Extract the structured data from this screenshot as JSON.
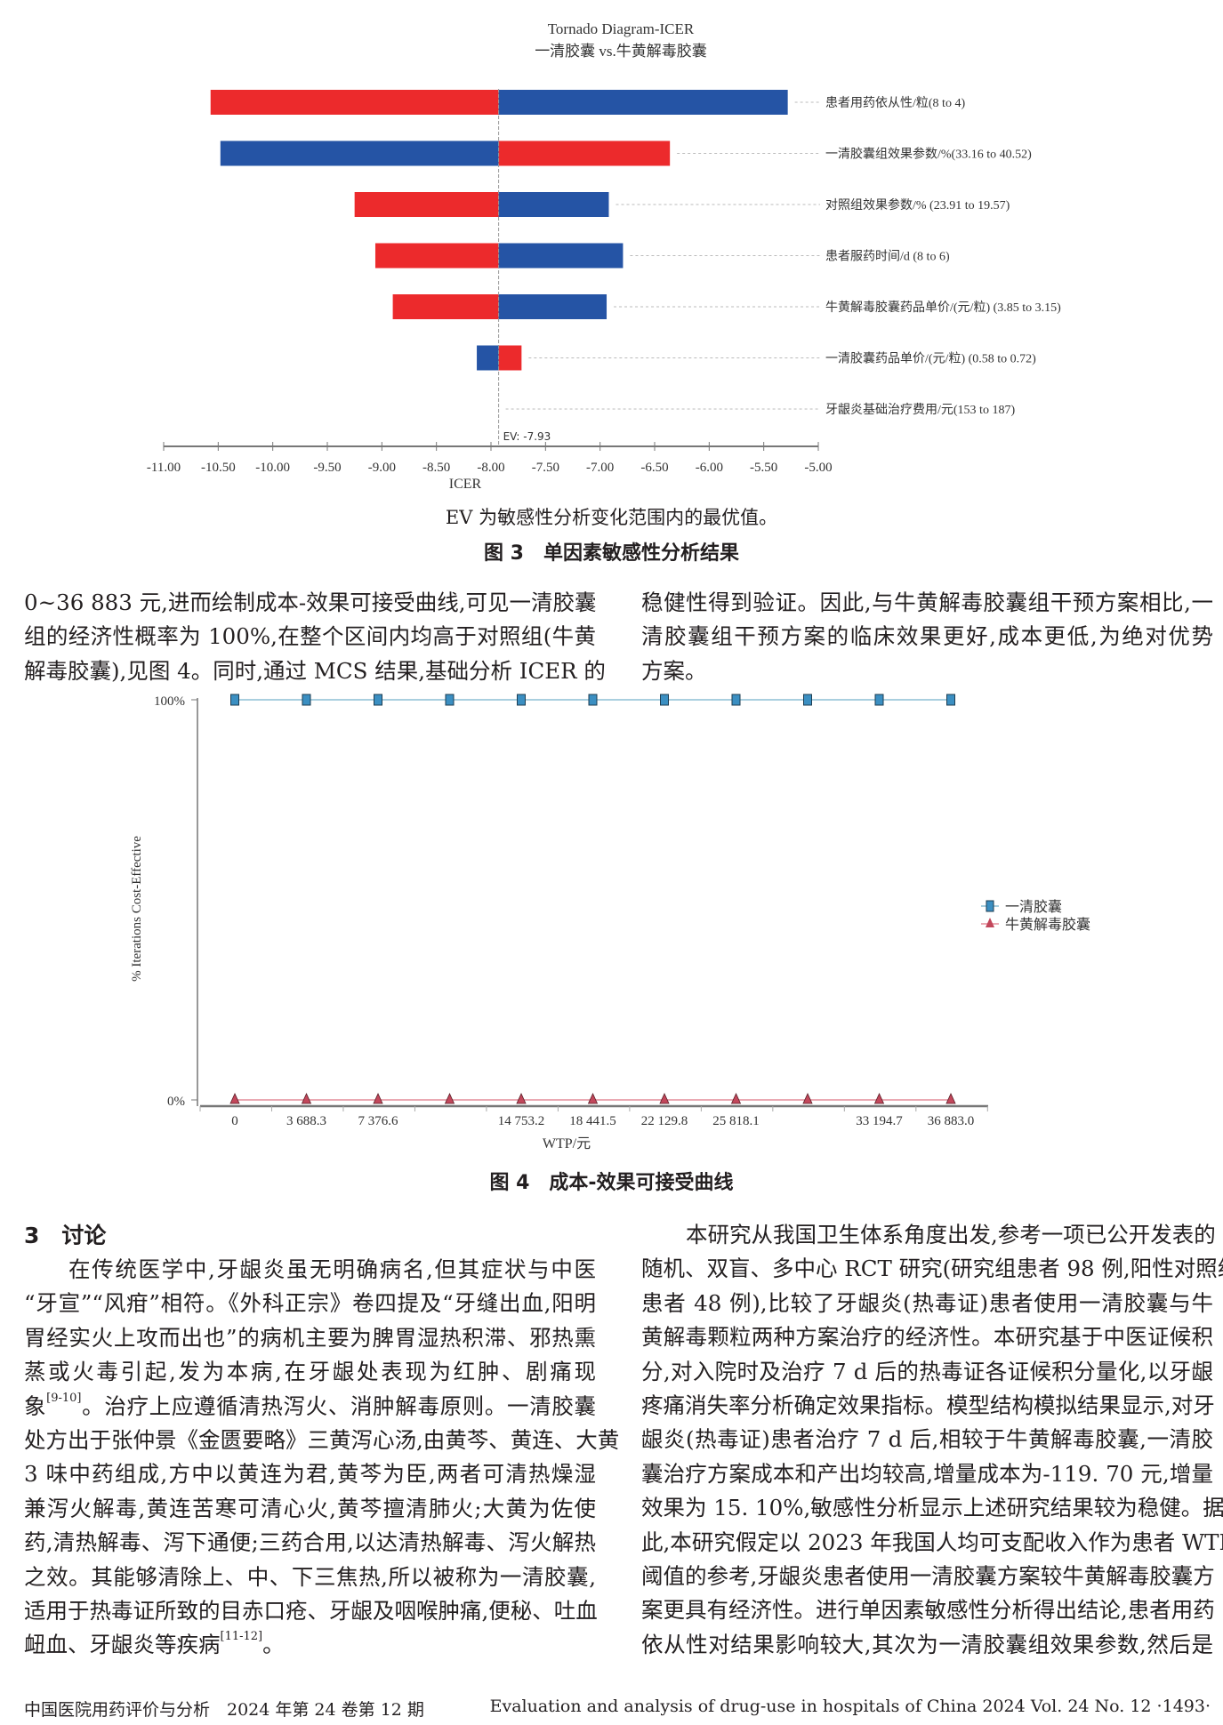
{
  "figure3": {
    "note": "EV 为敏感性分析变化范围内的最优值。",
    "caption": "图 3　单因素敏感性分析结果"
  },
  "figure4": {
    "caption": "图 4　成本-效果可接受曲线"
  },
  "intro": {
    "left_lines": [
      "0~36 883 元,进而绘制成本-效果可接受曲线,可见一清胶囊",
      "组的经济性概率为 100%,在整个区间内均高于对照组(牛黄",
      "解毒胶囊),见图 4。同时,通过 MCS 结果,基础分析 ICER 的"
    ],
    "right_lines": [
      "稳健性得到验证。因此,与牛黄解毒胶囊组干预方案相比,一",
      "清胶囊组干预方案的临床效果更好,成本更低,为绝对优势",
      "方案。"
    ]
  },
  "section3": {
    "heading": "3　讨论",
    "left_lines": [
      {
        "text": "在传统医学中,牙龈炎虽无明确病名,但其症状与中医"
      },
      {
        "text": "“牙宣”“风疳”相符。《外科正宗》卷四提及“牙缝出血,阳明"
      },
      {
        "text": "胃经实火上攻而出也”的病机主要为脾胃湿热积滞、邪热熏"
      },
      {
        "text": "蒸或火毒引起,发为本病,在牙龈处表现为红肿、剧痛现"
      },
      {
        "text": "象",
        "sup": "[9-10]",
        "after": "。治疗上应遵循清热泻火、消肿解毒原则。一清胶囊"
      },
      {
        "text": "处方出于张仲景《金匮要略》三黄泻心汤,由黄芩、黄连、大黄"
      },
      {
        "text": "3 味中药组成,方中以黄连为君,黄芩为臣,两者可清热燥湿"
      },
      {
        "text": "兼泻火解毒,黄连苦寒可清心火,黄芩擅清肺火;大黄为佐使"
      },
      {
        "text": "药,清热解毒、泻下通便;三药合用,以达清热解毒、泻火解热"
      },
      {
        "text": "之效。其能够清除上、中、下三焦热,所以被称为一清胶囊,"
      },
      {
        "text": "适用于热毒证所致的目赤口疮、牙龈及咽喉肿痛,便秘、吐血"
      },
      {
        "text": "衄血、牙龈炎等疾病",
        "sup": "[11-12]",
        "after": "。"
      }
    ],
    "right_lines": [
      "本研究从我国卫生体系角度出发,参考一项已公开发表的",
      "随机、双盲、多中心 RCT 研究(研究组患者 98 例,阳性对照组",
      "患者 48 例),比较了牙龈炎(热毒证)患者使用一清胶囊与牛",
      "黄解毒颗粒两种方案治疗的经济性。本研究基于中医证候积",
      "分,对入院时及治疗 7 d 后的热毒证各证候积分量化,以牙龈",
      "疼痛消失率分析确定效果指标。模型结构模拟结果显示,对牙",
      "龈炎(热毒证)患者治疗 7 d 后,相较于牛黄解毒胶囊,一清胶",
      "囊治疗方案成本和产出均较高,增量成本为-119. 70 元,增量",
      "效果为 15. 10%,敏感性分析显示上述研究结果较为稳健。据",
      "此,本研究假定以 2023 年我国人均可支配收入作为患者 WTP",
      "阈值的参考,牙龈炎患者使用一清胶囊方案较牛黄解毒胶囊方",
      "案更具有经济性。进行单因素敏感性分析得出结论,患者用药",
      "依从性对结果影响较大,其次为一清胶囊组效果参数,然后是"
    ]
  },
  "footer": {
    "left": "中国医院用药评价与分析　2024 年第 24 卷第 12 期",
    "right": "Evaluation and analysis of drug-use in hospitals of China 2024 Vol. 24 No. 12 ·1493·"
  },
  "chart_data": [
    {
      "type": "bar",
      "subtype": "tornado",
      "title": "Tornado Diagram-ICER",
      "subtitle": "一清胶囊 vs.牛黄解毒胶囊",
      "xlabel": "ICER",
      "xlim": [
        -11.0,
        -5.0
      ],
      "xticks": [
        "-11.00",
        "-10.50",
        "-10.00",
        "-9.50",
        "-9.00",
        "-8.50",
        "-8.00",
        "-7.50",
        "-7.00",
        "-6.50",
        "-6.00",
        "-5.50",
        "-5.00"
      ],
      "ev": -7.93,
      "ev_label": "EV: -7.93",
      "colors": {
        "red": "#ec2a2c",
        "blue": "#2554a5"
      },
      "categories": [
        "患者用药依从性/粒(8 to 4)",
        "一清胶囊组效果参数/%(33.16 to 40.52)",
        "对照组效果参数/% (23.91 to 19.57)",
        "患者服药时间/d (8 to 6)",
        "牛黄解毒胶囊药品单价/(元/粒) (3.85 to 3.15)",
        "一清胶囊药品单价/(元/粒) (0.58 to 0.72)",
        "牙龈炎基础治疗费用/元(153 to 187)"
      ],
      "bars": [
        {
          "low": -10.57,
          "high": -5.28,
          "low_color": "red",
          "high_color": "blue"
        },
        {
          "low": -10.48,
          "high": -6.36,
          "low_color": "blue",
          "high_color": "red"
        },
        {
          "low": -9.25,
          "high": -6.92,
          "low_color": "red",
          "high_color": "blue"
        },
        {
          "low": -9.06,
          "high": -6.79,
          "low_color": "red",
          "high_color": "blue"
        },
        {
          "low": -8.9,
          "high": -6.94,
          "low_color": "red",
          "high_color": "blue"
        },
        {
          "low": -8.13,
          "high": -7.72,
          "low_color": "blue",
          "high_color": "red"
        },
        {
          "low": -7.93,
          "high": -7.93,
          "low_color": "red",
          "high_color": "blue"
        }
      ]
    },
    {
      "type": "line",
      "xlabel": "WTP/元",
      "ylabel": "% Iterations Cost-Effective",
      "ylim": [
        0,
        100
      ],
      "yticks": [
        "0%",
        "100%"
      ],
      "x": [
        0,
        3688.3,
        7376.6,
        11064.9,
        14753.2,
        18441.5,
        22129.8,
        25818.1,
        29506.4,
        33194.7,
        36883.0
      ],
      "xtick_labels": [
        "0",
        "3 688.3",
        "7 376.6",
        "",
        "14 753.2",
        "18 441.5",
        "22 129.8",
        "25 818.1",
        "",
        "33 194.7",
        "36 883.0"
      ],
      "legend": "right",
      "series": [
        {
          "name": "一清胶囊",
          "marker": "square",
          "color": "#3b8fc2",
          "line_color": "#a9cfdf",
          "values": [
            100,
            100,
            100,
            100,
            100,
            100,
            100,
            100,
            100,
            100,
            100
          ]
        },
        {
          "name": "牛黄解毒胶囊",
          "marker": "triangle",
          "color": "#c2475b",
          "line_color": "#eaa9b3",
          "values": [
            0,
            0,
            0,
            0,
            0,
            0,
            0,
            0,
            0,
            0,
            0
          ]
        }
      ]
    }
  ]
}
